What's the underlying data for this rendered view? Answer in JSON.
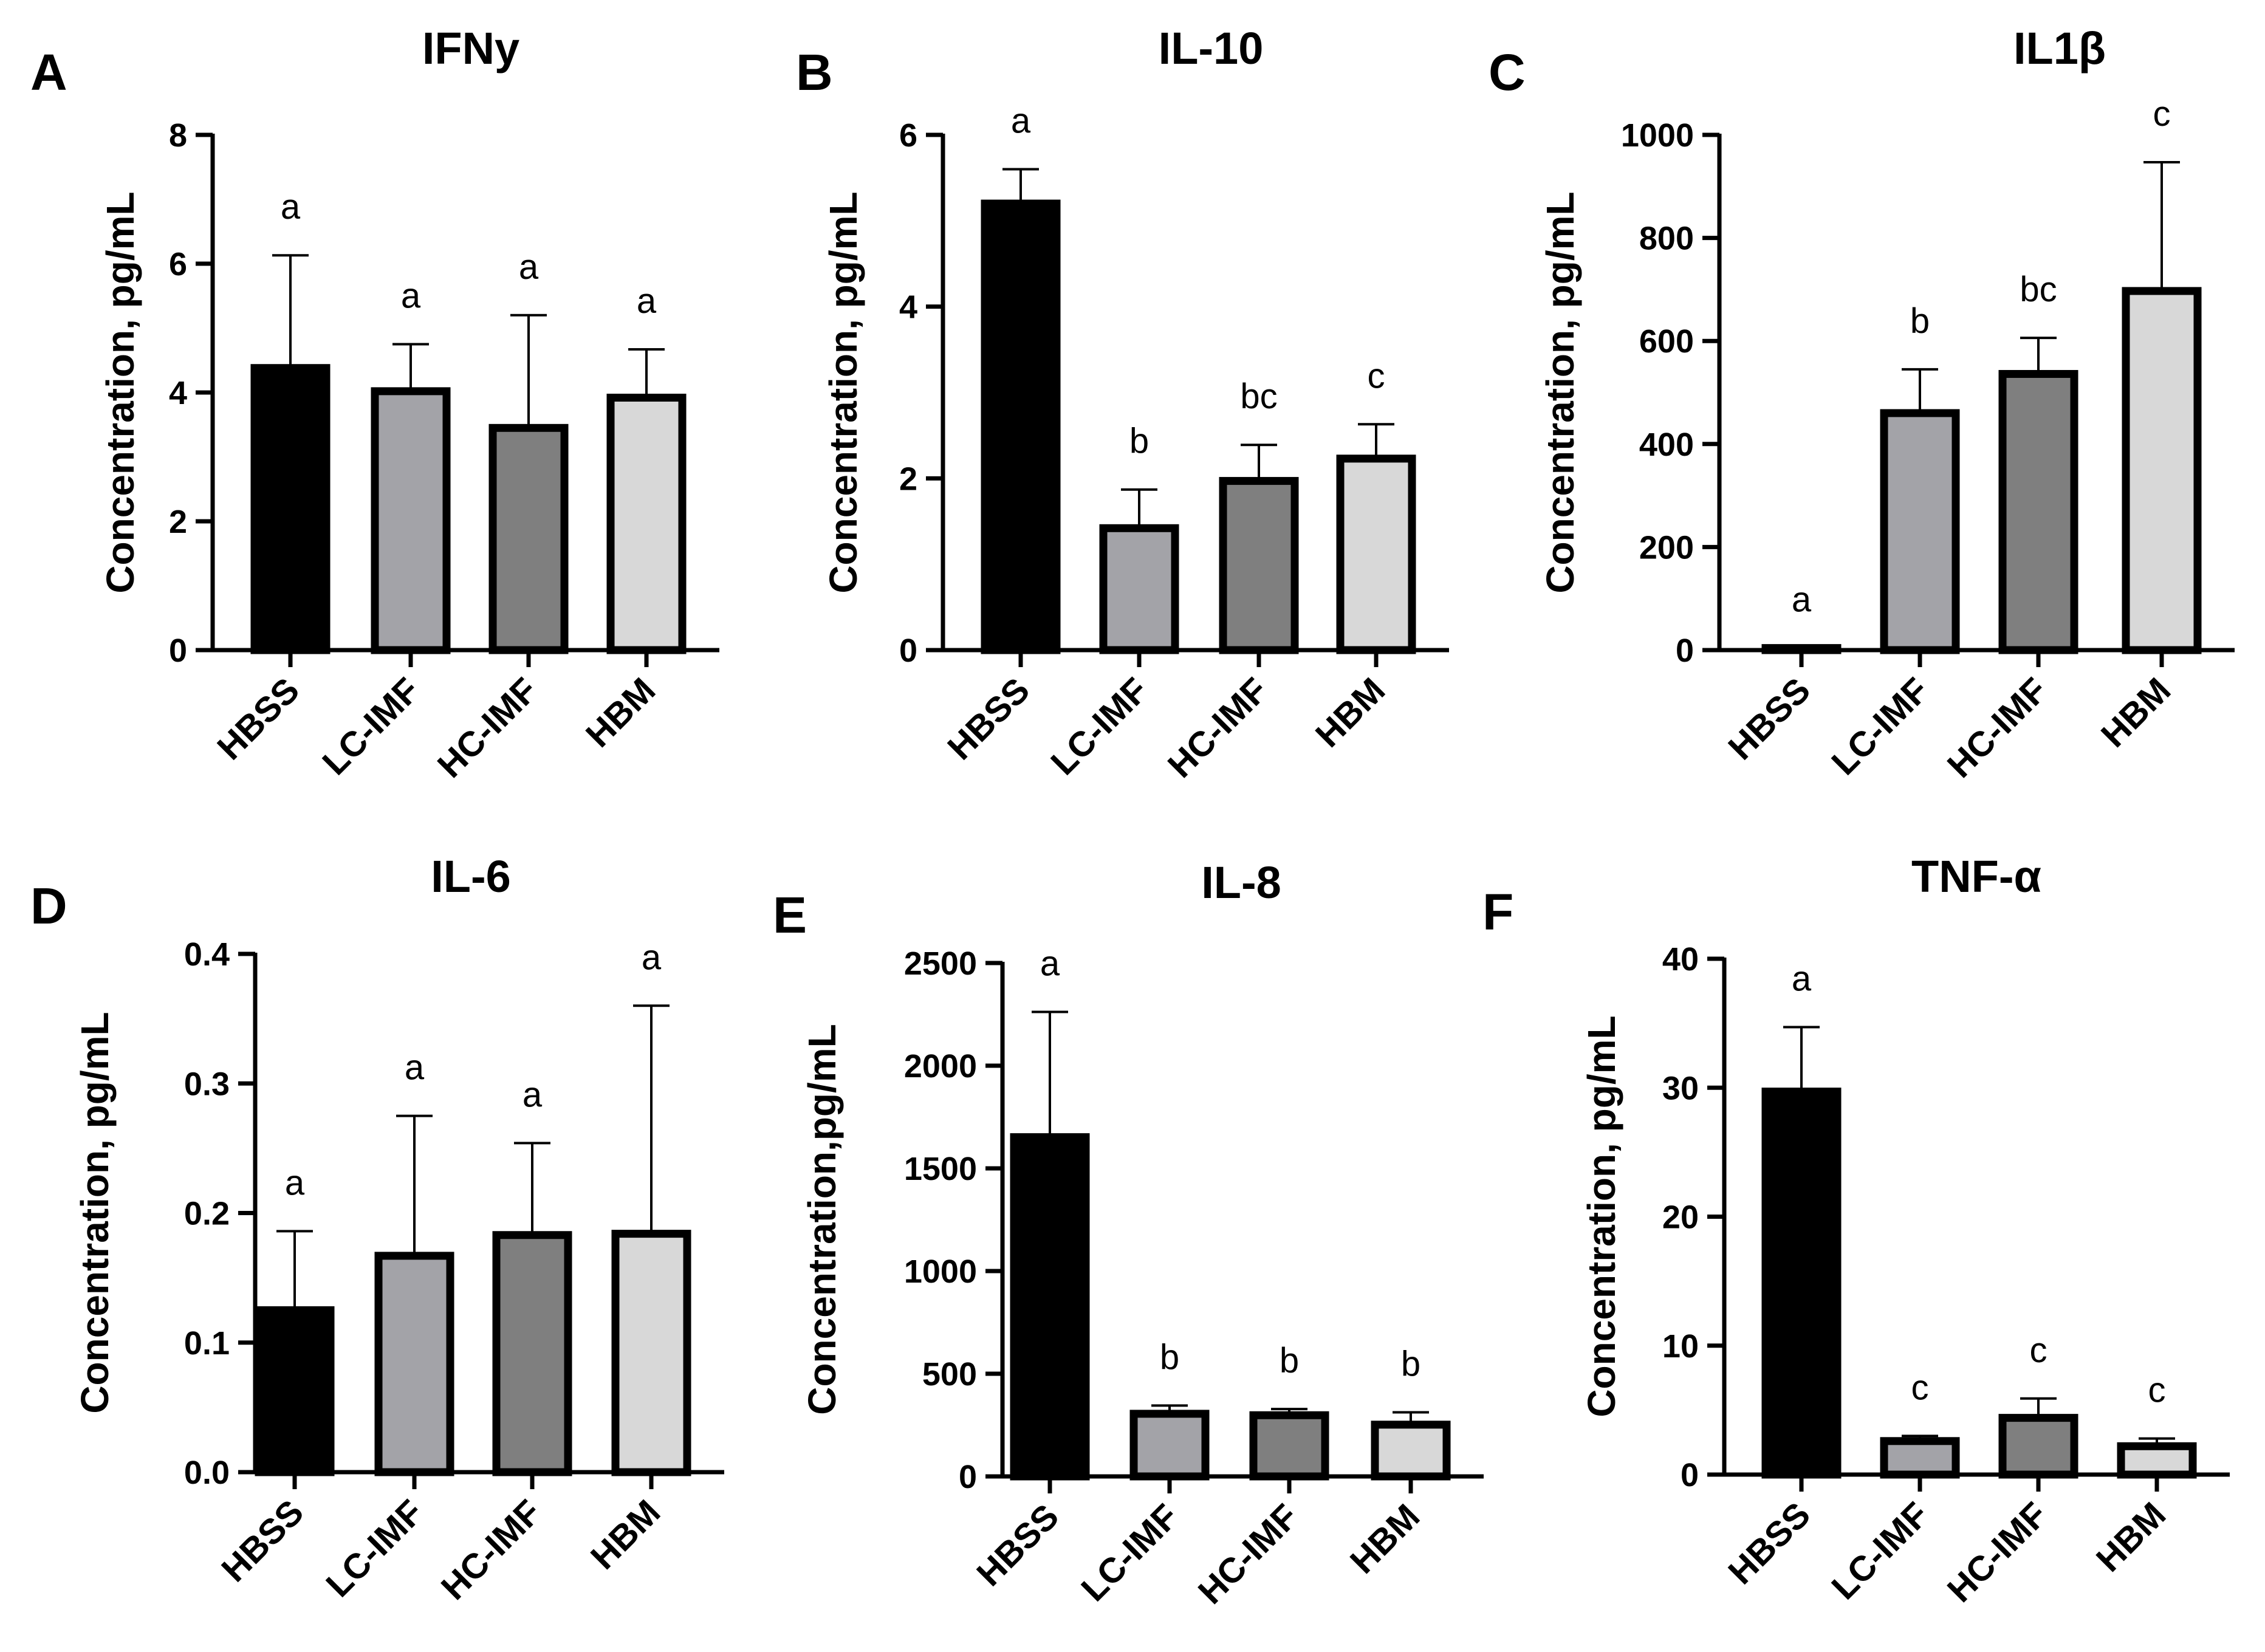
{
  "figure_description_colors": {
    "bar_colors": [
      "#000000",
      "#a3a3a8",
      "#7f7f7f",
      "#d8d8d8"
    ],
    "axis_color": "#000000"
  },
  "chart_data": [
    {
      "panel": "A",
      "type": "bar",
      "title": "IFNy",
      "ylabel": "Concentration, pg/mL",
      "categories": [
        "HBSS",
        "LC-IMF",
        "HC-IMF",
        "HBM"
      ],
      "values": [
        4.38,
        4.02,
        3.45,
        3.92
      ],
      "errors": [
        1.75,
        0.73,
        1.75,
        0.75
      ],
      "letters": [
        "a",
        "a",
        "a",
        "a"
      ],
      "ylim": [
        0,
        8
      ],
      "yticks": [
        0,
        2,
        4,
        6,
        8
      ],
      "ytick_labels": [
        "0",
        "2",
        "4",
        "6",
        "8"
      ]
    },
    {
      "panel": "B",
      "type": "bar",
      "title": "IL-10",
      "ylabel": "Concentration, pg/mL",
      "categories": [
        "HBSS",
        "LC-IMF",
        "HC-IMF",
        "HBM"
      ],
      "values": [
        5.2,
        1.42,
        1.97,
        2.23
      ],
      "errors": [
        0.4,
        0.45,
        0.42,
        0.4
      ],
      "letters": [
        "a",
        "b",
        "bc",
        "c"
      ],
      "ylim": [
        0,
        6
      ],
      "yticks": [
        0,
        2,
        4,
        6
      ],
      "ytick_labels": [
        "0",
        "2",
        "4",
        "6"
      ]
    },
    {
      "panel": "C",
      "type": "bar",
      "title": "IL1β",
      "ylabel": "Concentration, pg/mL",
      "categories": [
        "HBSS",
        "LC-IMF",
        "HC-IMF",
        "HBM"
      ],
      "values": [
        4,
        460,
        536,
        697
      ],
      "errors": [
        0,
        85,
        70,
        250
      ],
      "letters": [
        "a",
        "b",
        "bc",
        "c"
      ],
      "ylim": [
        0,
        1000
      ],
      "yticks": [
        0,
        200,
        400,
        600,
        800,
        1000
      ],
      "ytick_labels": [
        "0",
        "200",
        "400",
        "600",
        "800",
        "1000"
      ]
    },
    {
      "panel": "D",
      "type": "bar",
      "title": "IL-6",
      "ylabel": "Concentration, pg/mL",
      "categories": [
        "HBSS",
        "LC-IMF",
        "HC-IMF",
        "HBM"
      ],
      "values": [
        0.125,
        0.167,
        0.183,
        0.184
      ],
      "errors": [
        0.061,
        0.108,
        0.071,
        0.176
      ],
      "letters": [
        "a",
        "a",
        "a",
        "a"
      ],
      "ylim": [
        0,
        0.4
      ],
      "yticks": [
        0,
        0.1,
        0.2,
        0.3,
        0.4
      ],
      "ytick_labels": [
        "0.0",
        "0.1",
        "0.2",
        "0.3",
        "0.4"
      ]
    },
    {
      "panel": "E",
      "type": "bar",
      "title": "IL-8",
      "ylabel": "Concentration,pg/mL",
      "categories": [
        "HBSS",
        "LC-IMF",
        "HC-IMF",
        "HBM"
      ],
      "values": [
        1652,
        305,
        298,
        252
      ],
      "errors": [
        610,
        40,
        30,
        60
      ],
      "letters": [
        "a",
        "b",
        "b",
        "b"
      ],
      "ylim": [
        0,
        2500
      ],
      "yticks": [
        0,
        500,
        1000,
        1500,
        2000,
        2500
      ],
      "ytick_labels": [
        "0",
        "500",
        "1000",
        "1500",
        "2000",
        "2500"
      ]
    },
    {
      "panel": "F",
      "type": "bar",
      "title": "TNF-α",
      "ylabel": "Concentration, pg/mL",
      "categories": [
        "HBSS",
        "LC-IMF",
        "HC-IMF",
        "HBM"
      ],
      "values": [
        29.7,
        2.6,
        4.4,
        2.2
      ],
      "errors": [
        5.0,
        0.4,
        1.5,
        0.6
      ],
      "letters": [
        "a",
        "c",
        "c",
        "c"
      ],
      "ylim": [
        0,
        40
      ],
      "yticks": [
        0,
        10,
        20,
        30,
        40
      ],
      "ytick_labels": [
        "0",
        "10",
        "20",
        "30",
        "40"
      ]
    }
  ]
}
